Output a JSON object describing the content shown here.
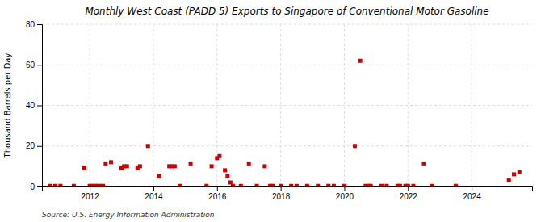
{
  "chart_data": {
    "type": "scatter",
    "title": "Monthly West Coast (PADD 5) Exports to Singapore of Conventional Motor Gasoline",
    "y_label": "Thousand Barrels per Day",
    "annotations": [
      "Source: U.S. Energy Information Administration"
    ],
    "color": "#cc0000",
    "marker": "square",
    "grid": true,
    "xlim": [
      2010.5,
      2025.9
    ],
    "xticks": [
      2012,
      2014,
      2016,
      2018,
      2020,
      2022,
      2024
    ],
    "ylim": [
      0,
      80
    ],
    "yticks": [
      0,
      20,
      40,
      60,
      80
    ],
    "x": [
      2010.75,
      2010.92,
      2011.08,
      2011.5,
      2011.83,
      2012.0,
      2012.08,
      2012.17,
      2012.25,
      2012.33,
      2012.42,
      2012.5,
      2012.67,
      2013.0,
      2013.08,
      2013.17,
      2013.5,
      2013.58,
      2013.83,
      2014.17,
      2014.5,
      2014.58,
      2014.67,
      2014.83,
      2015.17,
      2015.67,
      2015.83,
      2016.0,
      2016.08,
      2016.25,
      2016.33,
      2016.42,
      2016.5,
      2016.75,
      2017.0,
      2017.25,
      2017.5,
      2017.67,
      2017.75,
      2018.0,
      2018.33,
      2018.5,
      2018.83,
      2019.17,
      2019.5,
      2019.67,
      2020.0,
      2020.33,
      2020.5,
      2020.67,
      2020.75,
      2020.83,
      2021.17,
      2021.33,
      2021.67,
      2021.75,
      2021.92,
      2022.0,
      2022.17,
      2022.5,
      2022.75,
      2023.5,
      2025.17,
      2025.33,
      2025.5
    ],
    "values": [
      0.3,
      0.3,
      0.3,
      0.3,
      9.0,
      0.3,
      0.3,
      0.3,
      0.3,
      0.3,
      0.3,
      11.0,
      12.0,
      9.0,
      10.0,
      10.0,
      9.0,
      10.0,
      20.0,
      5.0,
      10.0,
      10.0,
      10.0,
      0.3,
      11.0,
      0.3,
      10.0,
      14.0,
      15.0,
      8.0,
      5.0,
      2.0,
      0.3,
      0.3,
      11.0,
      0.3,
      10.0,
      0.3,
      0.3,
      0.3,
      0.3,
      0.3,
      0.3,
      0.3,
      0.3,
      0.3,
      0.3,
      20.0,
      62.0,
      0.3,
      0.3,
      0.3,
      0.3,
      0.3,
      0.3,
      0.3,
      0.3,
      0.3,
      0.3,
      11.0,
      0.3,
      0.3,
      3.0,
      6.0,
      7.0
    ]
  }
}
